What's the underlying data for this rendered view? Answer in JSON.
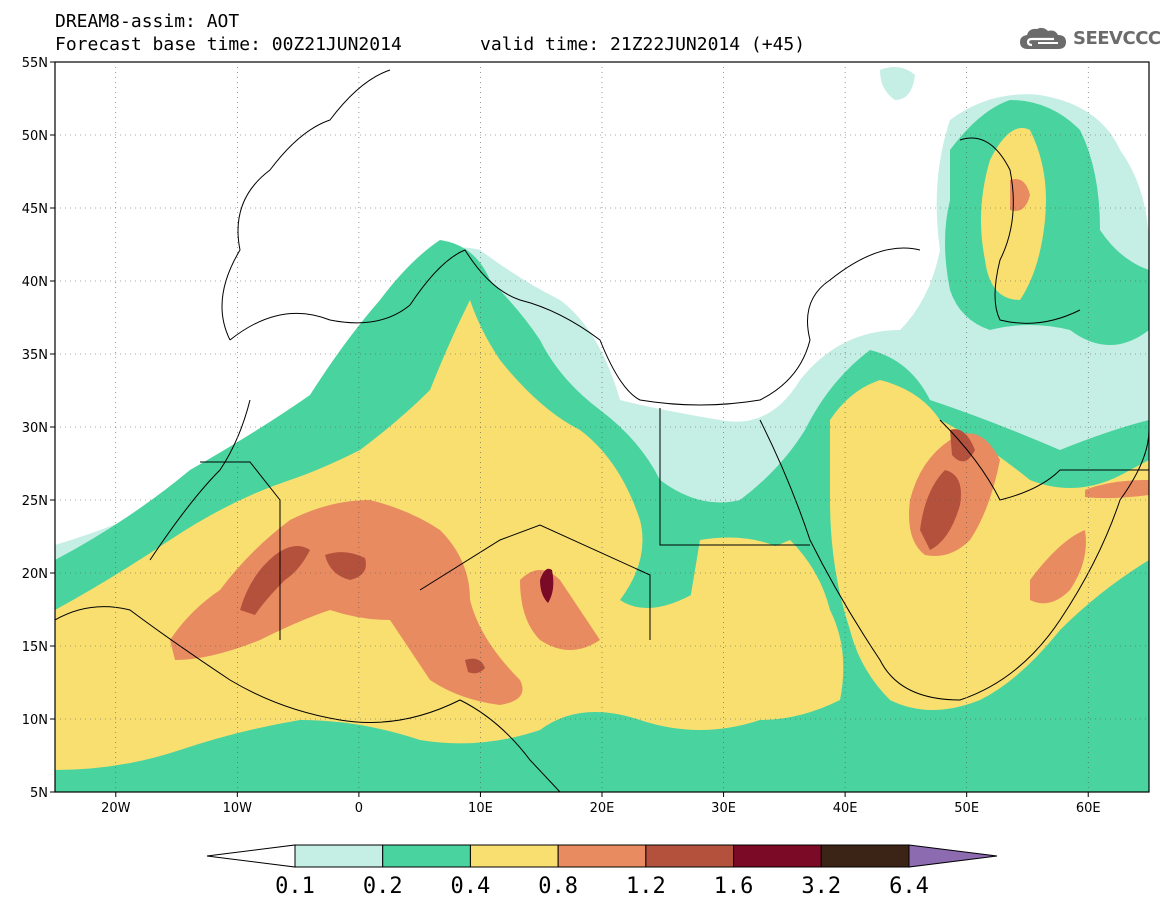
{
  "header": {
    "title_line1": "DREAM8-assim: AOT",
    "title_line2": "Forecast base time: 00Z21JUN2014",
    "valid_time": "valid time: 21Z22JUN2014 (+45)"
  },
  "logo": {
    "text": "SEEVCCC",
    "icon": "cloud-icon"
  },
  "map": {
    "lat_labels": [
      "55N",
      "50N",
      "45N",
      "40N",
      "35N",
      "30N",
      "25N",
      "20N",
      "15N",
      "10N",
      "5N"
    ],
    "lon_labels": [
      "20W",
      "10W",
      "0",
      "10E",
      "20E",
      "30E",
      "40E",
      "50E",
      "60E"
    ],
    "lat_range": [
      5,
      55
    ],
    "lon_range": [
      -25,
      65
    ],
    "grid": "dotted"
  },
  "legend": {
    "labels": [
      "0.1",
      "0.2",
      "0.4",
      "0.8",
      "1.2",
      "1.6",
      "3.2",
      "6.4"
    ],
    "colors": [
      "#ffffff",
      "#c5eee5",
      "#48d39f",
      "#f8df70",
      "#e98b60",
      "#b4513d",
      "#7a0a25",
      "#3b2416",
      "#8c6bb1"
    ]
  },
  "colors": {
    "aot_01": "#c5eee5",
    "aot_02": "#48d39f",
    "aot_04": "#f8df70",
    "aot_08": "#e98b60",
    "aot_12": "#b4513d",
    "aot_16": "#7a0a25"
  }
}
